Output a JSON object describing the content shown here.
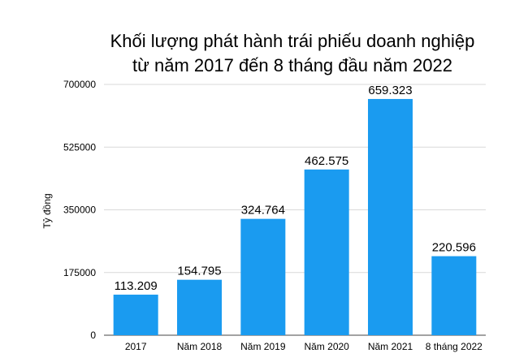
{
  "chart_data": {
    "type": "bar",
    "title_lines": [
      "Khối lượng phát hành trái phiếu doanh nghiệp",
      "từ năm 2017 đến 8 tháng đầu năm 2022"
    ],
    "ylabel": "Tỷ đồng",
    "xlabel": "",
    "categories": [
      "2017",
      "Năm 2018",
      "Năm 2019",
      "Năm 2020",
      "Năm 2021",
      "8 tháng 2022"
    ],
    "values": [
      113209,
      154795,
      324764,
      462575,
      659323,
      220596
    ],
    "value_labels": [
      "113.209",
      "154.795",
      "324.764",
      "462.575",
      "659.323",
      "220.596"
    ],
    "ylim": [
      0,
      700000
    ],
    "yticks": [
      0,
      175000,
      350000,
      525000,
      700000
    ],
    "ytick_labels": [
      "0",
      "175000",
      "350000",
      "525000",
      "700000"
    ],
    "grid": true,
    "bar_color": "#1a9bf0",
    "grid_color": "#d9d9d9"
  }
}
